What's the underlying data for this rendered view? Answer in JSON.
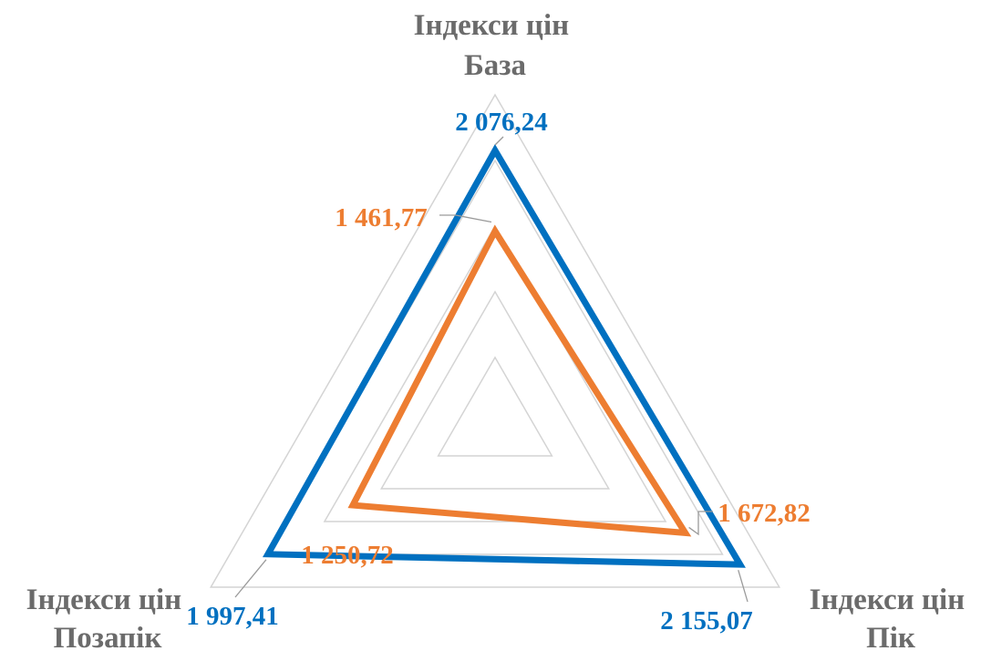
{
  "chart_data": {
    "type": "radar",
    "axes": [
      {
        "line1": "Індекси цін",
        "line2": "База"
      },
      {
        "line1": "Індекси цін",
        "line2": "Пік"
      },
      {
        "line1": "Індекси цін",
        "line2": "Позапік"
      }
    ],
    "rlim": [
      0,
      2500
    ],
    "grid_levels": [
      500,
      1000,
      1500,
      2000,
      2500
    ],
    "series": [
      {
        "values": [
          2076.24,
          2155.07,
          1997.41
        ],
        "labels": [
          "2 076,24",
          "2 155,07",
          "1 997,41"
        ],
        "color": "#0070c0"
      },
      {
        "values": [
          1461.77,
          1672.82,
          1250.72
        ],
        "labels": [
          "1 461,77",
          "1 672,82",
          "1 250,72"
        ],
        "color": "#ed7d31"
      }
    ],
    "gridline_color": "#d4d4d4",
    "axis_label_color": "#6b6b6b"
  }
}
